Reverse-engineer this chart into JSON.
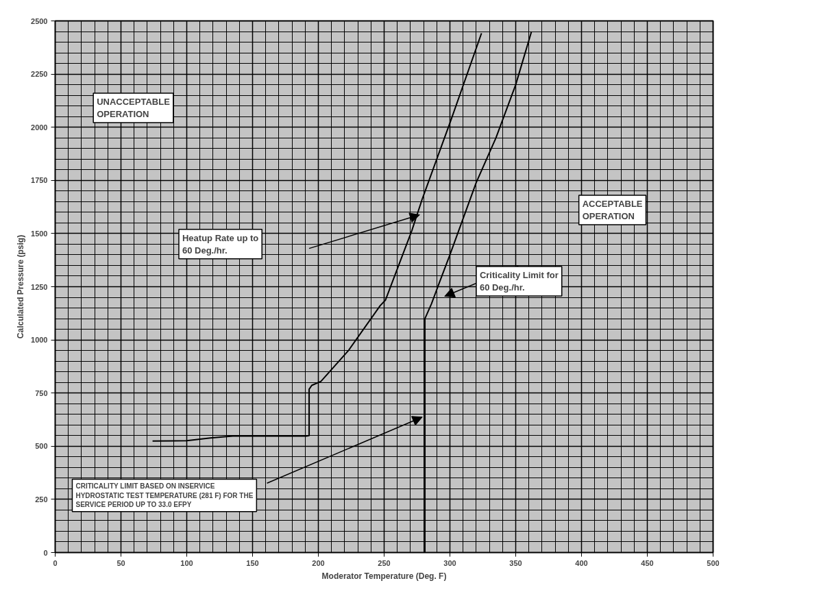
{
  "chart_data": {
    "type": "line",
    "xlabel": "Moderator Temperature (Deg. F)",
    "ylabel": "Calculated Pressure (psig)",
    "xlim": [
      0,
      500
    ],
    "xticks": [
      0,
      50,
      100,
      150,
      200,
      250,
      300,
      350,
      400,
      450,
      500
    ],
    "ylim": [
      0,
      2500
    ],
    "yticks": [
      0,
      250,
      500,
      750,
      1000,
      1250,
      1500,
      1750,
      2000,
      2250,
      2500
    ],
    "grid": true,
    "marker": "none",
    "line_style": "solid",
    "series": [
      {
        "color": "#000000",
        "x": [
          74,
          100,
          118,
          135,
          160,
          191,
          193,
          193,
          195,
          202,
          223,
          247,
          251,
          271,
          279,
          301,
          324
        ],
        "values": [
          524,
          526,
          539,
          548,
          548,
          548,
          550,
          768,
          786,
          805,
          951,
          1161,
          1187,
          1513,
          1663,
          2037,
          2442
        ]
      },
      {
        "color": "#000000",
        "x": [
          281,
          281,
          286,
          292,
          300,
          310,
          320,
          335,
          350,
          362
        ],
        "values": [
          0,
          1100,
          1170,
          1270,
          1400,
          1570,
          1740,
          1950,
          2200,
          2450
        ]
      }
    ],
    "annotations": [
      "UNACCEPTABLE\nOPERATION",
      "ACCEPTABLE\nOPERATION",
      "Heatup Rate up to\n60 Deg./hr.",
      "Criticality Limit for\n60 Deg./hr.",
      "CRITICALITY LIMIT BASED ON INSERVICE\nHYDROSTATIC TEST TEMPERATURE (281 F) FOR THE\nSERVICE PERIOD UP TO 33.0 EFPY"
    ]
  }
}
